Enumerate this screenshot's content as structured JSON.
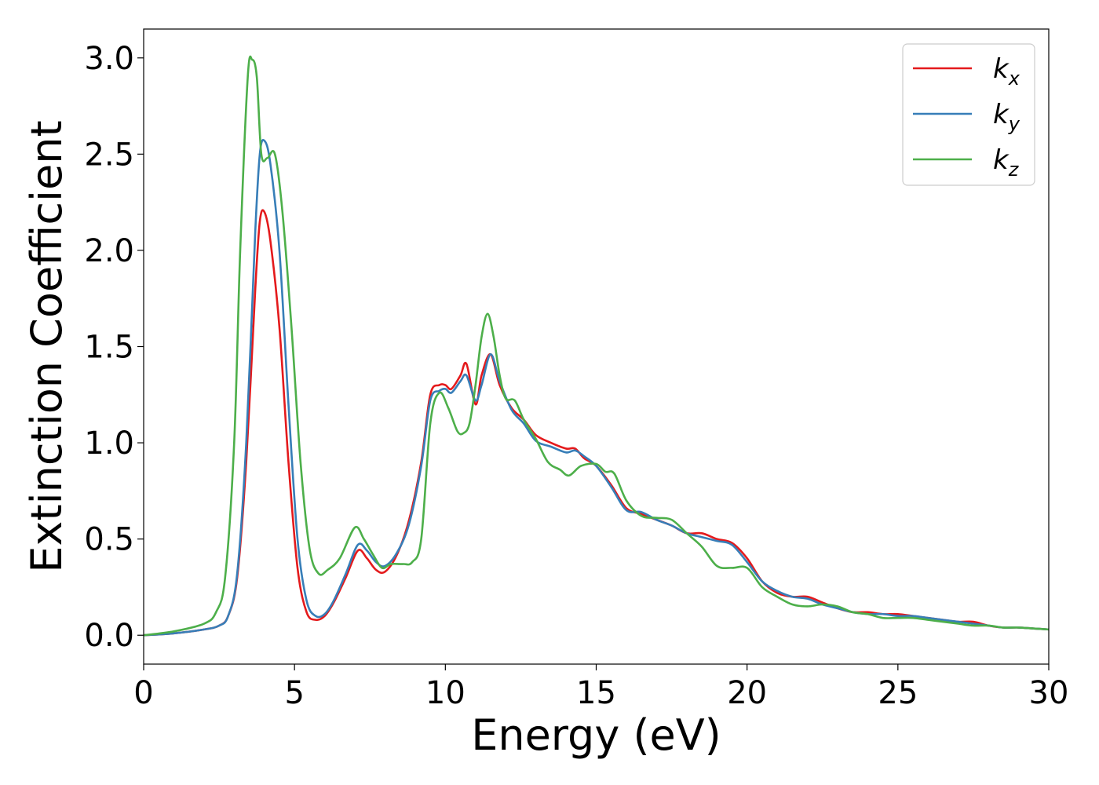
{
  "chart_data": {
    "type": "line",
    "xlabel": "Energy (eV)",
    "ylabel": "Extinction Coefficient",
    "xlim": [
      0,
      30
    ],
    "ylim": [
      -0.15,
      3.15
    ],
    "xticks": [
      0,
      5,
      10,
      15,
      20,
      25,
      30
    ],
    "xtick_labels": [
      "0",
      "5",
      "10",
      "15",
      "20",
      "25",
      "30"
    ],
    "yticks": [
      0.0,
      0.5,
      1.0,
      1.5,
      2.0,
      2.5,
      3.0
    ],
    "ytick_labels": [
      "0.0",
      "0.5",
      "1.0",
      "1.5",
      "2.0",
      "2.5",
      "3.0"
    ],
    "grid": false,
    "legend_position": "top-right",
    "series": [
      {
        "name": "k",
        "subscript": "x",
        "color": "#e41a1c",
        "x": [
          0,
          1,
          2,
          2.5,
          2.8,
          3.1,
          3.4,
          3.7,
          3.85,
          4.0,
          4.2,
          4.5,
          4.8,
          5.1,
          5.4,
          5.7,
          6.0,
          6.3,
          6.7,
          7.1,
          7.4,
          7.7,
          8.0,
          8.4,
          8.8,
          9.2,
          9.5,
          9.8,
          10.0,
          10.2,
          10.5,
          10.7,
          11.0,
          11.2,
          11.5,
          11.8,
          12.2,
          12.6,
          13.0,
          13.5,
          14.0,
          14.3,
          14.6,
          15.0,
          15.5,
          16.0,
          16.5,
          17.0,
          17.5,
          18.0,
          18.5,
          19.0,
          19.5,
          20.0,
          20.5,
          21.0,
          21.5,
          22.0,
          22.5,
          23.0,
          23.5,
          24.0,
          24.5,
          25.0,
          25.5,
          26.0,
          26.5,
          27.0,
          27.5,
          28.0,
          28.5,
          29.0,
          29.5,
          30.0
        ],
        "y": [
          0,
          0.01,
          0.03,
          0.05,
          0.1,
          0.3,
          0.9,
          1.8,
          2.15,
          2.2,
          2.05,
          1.6,
          0.9,
          0.35,
          0.12,
          0.08,
          0.1,
          0.17,
          0.3,
          0.44,
          0.4,
          0.34,
          0.33,
          0.42,
          0.6,
          0.9,
          1.25,
          1.3,
          1.3,
          1.28,
          1.35,
          1.41,
          1.2,
          1.35,
          1.46,
          1.3,
          1.18,
          1.12,
          1.04,
          1.0,
          0.97,
          0.97,
          0.92,
          0.88,
          0.78,
          0.66,
          0.63,
          0.6,
          0.57,
          0.53,
          0.53,
          0.5,
          0.48,
          0.4,
          0.28,
          0.22,
          0.2,
          0.2,
          0.17,
          0.14,
          0.12,
          0.12,
          0.11,
          0.11,
          0.1,
          0.09,
          0.08,
          0.07,
          0.07,
          0.05,
          0.04,
          0.04,
          0.035,
          0.03
        ]
      },
      {
        "name": "k",
        "subscript": "y",
        "color": "#377eb8",
        "x": [
          0,
          1,
          2,
          2.5,
          2.8,
          3.1,
          3.4,
          3.7,
          3.85,
          4.0,
          4.2,
          4.5,
          4.8,
          5.1,
          5.4,
          5.7,
          6.0,
          6.3,
          6.7,
          7.1,
          7.4,
          7.7,
          8.0,
          8.4,
          8.8,
          9.2,
          9.5,
          9.8,
          10.0,
          10.2,
          10.5,
          10.7,
          11.0,
          11.2,
          11.5,
          11.8,
          12.2,
          12.6,
          13.0,
          13.5,
          14.0,
          14.3,
          14.6,
          15.0,
          15.5,
          16.0,
          16.5,
          17.0,
          17.5,
          18.0,
          18.5,
          19.0,
          19.5,
          20.0,
          20.5,
          21.0,
          21.5,
          22.0,
          22.5,
          23.0,
          23.5,
          24.0,
          24.5,
          25.0,
          25.5,
          26.0,
          26.5,
          27.0,
          27.5,
          28.0,
          28.5,
          29.0,
          29.5,
          30.0
        ],
        "y": [
          0,
          0.01,
          0.03,
          0.05,
          0.1,
          0.32,
          1.0,
          2.1,
          2.5,
          2.57,
          2.45,
          2.0,
          1.2,
          0.5,
          0.18,
          0.1,
          0.11,
          0.18,
          0.32,
          0.47,
          0.44,
          0.38,
          0.36,
          0.43,
          0.58,
          0.88,
          1.22,
          1.27,
          1.28,
          1.26,
          1.32,
          1.35,
          1.22,
          1.3,
          1.46,
          1.32,
          1.17,
          1.1,
          1.01,
          0.98,
          0.95,
          0.96,
          0.93,
          0.88,
          0.77,
          0.65,
          0.64,
          0.6,
          0.57,
          0.53,
          0.51,
          0.49,
          0.47,
          0.38,
          0.28,
          0.23,
          0.2,
          0.19,
          0.16,
          0.14,
          0.12,
          0.11,
          0.11,
          0.1,
          0.1,
          0.09,
          0.08,
          0.07,
          0.06,
          0.05,
          0.04,
          0.04,
          0.035,
          0.03
        ]
      },
      {
        "name": "k",
        "subscript": "z",
        "color": "#4daf4a",
        "x": [
          0,
          1,
          2,
          2.4,
          2.7,
          3.0,
          3.2,
          3.45,
          3.6,
          3.75,
          3.9,
          4.1,
          4.35,
          4.6,
          4.9,
          5.2,
          5.5,
          5.8,
          6.1,
          6.5,
          7.0,
          7.3,
          7.6,
          7.9,
          8.2,
          8.6,
          8.9,
          9.2,
          9.5,
          9.8,
          10.1,
          10.4,
          10.6,
          10.8,
          11.0,
          11.2,
          11.4,
          11.6,
          11.8,
          12.0,
          12.3,
          12.6,
          13.0,
          13.4,
          13.8,
          14.1,
          14.5,
          15.0,
          15.3,
          15.6,
          16.0,
          16.5,
          17.0,
          17.5,
          18.0,
          18.5,
          19.0,
          19.5,
          20.0,
          20.5,
          21.0,
          21.5,
          22.0,
          22.5,
          23.0,
          23.5,
          24.0,
          24.5,
          25.0,
          25.5,
          26.0,
          26.5,
          27.0,
          27.5,
          28.0,
          28.5,
          29.0,
          29.5,
          30.0
        ],
        "y": [
          0,
          0.02,
          0.06,
          0.12,
          0.3,
          1.0,
          2.0,
          2.9,
          2.99,
          2.9,
          2.5,
          2.48,
          2.5,
          2.2,
          1.6,
          0.9,
          0.45,
          0.32,
          0.34,
          0.4,
          0.56,
          0.5,
          0.42,
          0.35,
          0.37,
          0.37,
          0.38,
          0.5,
          1.1,
          1.26,
          1.18,
          1.06,
          1.05,
          1.1,
          1.3,
          1.55,
          1.67,
          1.55,
          1.35,
          1.23,
          1.22,
          1.12,
          1.02,
          0.9,
          0.86,
          0.83,
          0.88,
          0.89,
          0.85,
          0.84,
          0.7,
          0.62,
          0.61,
          0.6,
          0.53,
          0.46,
          0.36,
          0.35,
          0.35,
          0.25,
          0.2,
          0.16,
          0.15,
          0.16,
          0.15,
          0.12,
          0.11,
          0.09,
          0.09,
          0.09,
          0.08,
          0.07,
          0.06,
          0.05,
          0.05,
          0.04,
          0.04,
          0.035,
          0.03
        ]
      }
    ]
  }
}
